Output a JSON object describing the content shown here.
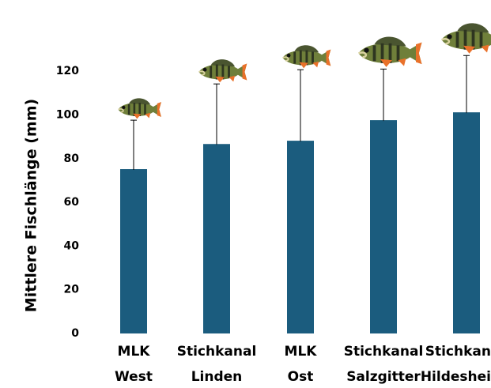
{
  "chart_data": {
    "type": "bar",
    "y_label": "Mittlere Fischlänge (mm)",
    "categories": [
      [
        "MLK",
        "West"
      ],
      [
        "Stichkanal",
        "Linden"
      ],
      [
        "MLK",
        "Ost"
      ],
      [
        "Stichkanal",
        "Salzgitter"
      ],
      [
        "Stichkan",
        "Hildeshei"
      ]
    ],
    "values": [
      75.2,
      86.7,
      88.2,
      97.6,
      101.2
    ],
    "errors": [
      22.4,
      27.5,
      32.5,
      23.4,
      26.0
    ],
    "color": "#1b5c7e",
    "ylim": [
      0,
      130
    ],
    "yticks": [
      0,
      20,
      40,
      60,
      80,
      100,
      120
    ],
    "grid": false
  }
}
